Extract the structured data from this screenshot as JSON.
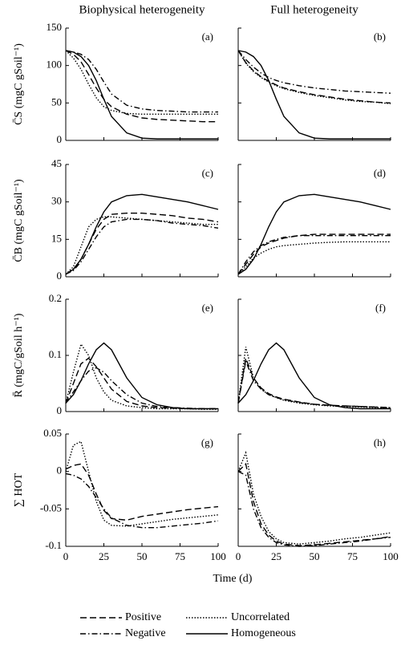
{
  "xlabel": "Time (d)",
  "chart_data": [
    {
      "type": "line",
      "title": "Biophysical heterogeneity",
      "panel": "(a)",
      "ylabel": "C̄S (mgC gSoil⁻¹)",
      "x": [
        0,
        5,
        10,
        15,
        20,
        25,
        30,
        40,
        50,
        60,
        70,
        80,
        90,
        100
      ],
      "xlim": [
        0,
        100
      ],
      "xticks": [
        0,
        25,
        50,
        75,
        100
      ],
      "ylim": [
        0,
        150
      ],
      "yticks": [
        0,
        50,
        100,
        150
      ],
      "series": [
        {
          "name": "Positive",
          "color": "#000000",
          "linestyle": "dashed",
          "values": [
            120,
            115,
            105,
            88,
            70,
            55,
            45,
            35,
            30,
            28,
            27,
            26,
            25,
            25
          ]
        },
        {
          "name": "Uncorrelated",
          "color": "#000000",
          "linestyle": "dotted",
          "values": [
            120,
            110,
            95,
            75,
            57,
            45,
            40,
            36,
            35,
            35,
            35,
            35,
            35,
            35
          ]
        },
        {
          "name": "Negative",
          "color": "#000000",
          "linestyle": "dashdot",
          "values": [
            120,
            118,
            115,
            108,
            95,
            78,
            62,
            47,
            42,
            40,
            39,
            38,
            38,
            38
          ]
        },
        {
          "name": "Homogeneous",
          "color": "#000000",
          "linestyle": "solid",
          "values": [
            120,
            118,
            112,
            100,
            80,
            55,
            32,
            10,
            3,
            2,
            2,
            2,
            2,
            2
          ]
        }
      ]
    },
    {
      "type": "line",
      "title": "Full heterogeneity",
      "panel": "(b)",
      "x": [
        0,
        5,
        10,
        15,
        20,
        25,
        30,
        40,
        50,
        60,
        70,
        80,
        90,
        100
      ],
      "xlim": [
        0,
        100
      ],
      "xticks": [
        0,
        25,
        50,
        75,
        100
      ],
      "ylim": [
        0,
        150
      ],
      "yticks": [
        0,
        50,
        100,
        150
      ],
      "series": [
        {
          "name": "Positive",
          "color": "#000000",
          "linestyle": "dashed",
          "values": [
            120,
            104,
            93,
            85,
            79,
            74,
            70,
            65,
            61,
            58,
            55,
            53,
            51,
            50
          ]
        },
        {
          "name": "Uncorrelated",
          "color": "#000000",
          "linestyle": "dotted",
          "values": [
            120,
            103,
            92,
            84,
            78,
            73,
            69,
            64,
            60,
            57,
            54,
            52,
            51,
            49
          ]
        },
        {
          "name": "Negative",
          "color": "#000000",
          "linestyle": "dashdot",
          "values": [
            120,
            108,
            98,
            90,
            84,
            80,
            77,
            73,
            70,
            68,
            66,
            65,
            64,
            63
          ]
        },
        {
          "name": "Homogeneous",
          "color": "#000000",
          "linestyle": "solid",
          "values": [
            120,
            118,
            112,
            100,
            80,
            55,
            32,
            10,
            3,
            2,
            2,
            2,
            2,
            2
          ]
        }
      ]
    },
    {
      "type": "line",
      "panel": "(c)",
      "ylabel": "C̄B (mgC gSoil⁻¹)",
      "x": [
        0,
        5,
        10,
        15,
        20,
        25,
        30,
        40,
        50,
        60,
        70,
        80,
        90,
        100
      ],
      "xlim": [
        0,
        100
      ],
      "xticks": [
        0,
        25,
        50,
        75,
        100
      ],
      "ylim": [
        0,
        45
      ],
      "yticks": [
        0,
        15,
        30,
        45
      ],
      "series": [
        {
          "name": "Positive",
          "color": "#000000",
          "linestyle": "dashed",
          "values": [
            1,
            3,
            7,
            13,
            19,
            23,
            25,
            25.5,
            25.5,
            25,
            24.5,
            23.5,
            23,
            22
          ]
        },
        {
          "name": "Uncorrelated",
          "color": "#000000",
          "linestyle": "dotted",
          "values": [
            1,
            4,
            12,
            20,
            23,
            24,
            24,
            23.5,
            23,
            22.5,
            22,
            21.5,
            21,
            21
          ]
        },
        {
          "name": "Negative",
          "color": "#000000",
          "linestyle": "dashdot",
          "values": [
            1,
            2.5,
            6,
            11,
            16,
            20,
            22,
            23,
            23,
            22.5,
            21.5,
            21,
            20.5,
            19.5
          ]
        },
        {
          "name": "Homogeneous",
          "color": "#000000",
          "linestyle": "solid",
          "values": [
            1,
            3,
            7,
            13,
            20,
            26,
            30,
            32.5,
            33,
            32,
            31,
            30,
            28.5,
            27
          ]
        }
      ]
    },
    {
      "type": "line",
      "panel": "(d)",
      "x": [
        0,
        5,
        10,
        15,
        20,
        25,
        30,
        40,
        50,
        60,
        70,
        80,
        90,
        100
      ],
      "xlim": [
        0,
        100
      ],
      "xticks": [
        0,
        25,
        50,
        75,
        100
      ],
      "ylim": [
        0,
        45
      ],
      "yticks": [
        0,
        15,
        30,
        45
      ],
      "series": [
        {
          "name": "Positive",
          "color": "#000000",
          "linestyle": "dashed",
          "values": [
            1,
            5,
            9,
            12,
            13.5,
            14.5,
            15.5,
            16.5,
            17,
            17,
            17,
            17,
            17,
            17
          ]
        },
        {
          "name": "Uncorrelated",
          "color": "#000000",
          "linestyle": "dotted",
          "values": [
            1,
            4,
            7.5,
            9.5,
            11,
            12,
            12.5,
            13,
            13.5,
            13.8,
            14,
            14,
            14,
            14
          ]
        },
        {
          "name": "Negative",
          "color": "#000000",
          "linestyle": "dashdot",
          "values": [
            1,
            6,
            10,
            12.5,
            14,
            15,
            15.8,
            16.5,
            16.5,
            16.5,
            16.5,
            16.5,
            16.5,
            16.5
          ]
        },
        {
          "name": "Homogeneous",
          "color": "#000000",
          "linestyle": "solid",
          "values": [
            1,
            3,
            7,
            13,
            20,
            26,
            30,
            32.5,
            33,
            32,
            31,
            30,
            28.5,
            27
          ]
        }
      ]
    },
    {
      "type": "line",
      "panel": "(e)",
      "ylabel": "R̄ (mgC/gSoil h⁻¹)",
      "x": [
        0,
        5,
        10,
        15,
        20,
        25,
        30,
        40,
        50,
        60,
        70,
        80,
        90,
        100
      ],
      "xlim": [
        0,
        100
      ],
      "xticks": [
        0,
        25,
        50,
        75,
        100
      ],
      "ylim": [
        0,
        0.2
      ],
      "yticks": [
        0,
        0.1,
        0.2
      ],
      "series": [
        {
          "name": "Positive",
          "color": "#000000",
          "linestyle": "dashed",
          "values": [
            0.015,
            0.05,
            0.085,
            0.095,
            0.08,
            0.06,
            0.04,
            0.018,
            0.01,
            0.007,
            0.006,
            0.005,
            0.005,
            0.005
          ]
        },
        {
          "name": "Uncorrelated",
          "color": "#000000",
          "linestyle": "dotted",
          "values": [
            0.015,
            0.07,
            0.12,
            0.1,
            0.06,
            0.035,
            0.02,
            0.01,
            0.007,
            0.005,
            0.005,
            0.005,
            0.004,
            0.004
          ]
        },
        {
          "name": "Negative",
          "color": "#000000",
          "linestyle": "dashdot",
          "values": [
            0.015,
            0.035,
            0.055,
            0.072,
            0.078,
            0.07,
            0.055,
            0.03,
            0.015,
            0.009,
            0.007,
            0.006,
            0.005,
            0.005
          ]
        },
        {
          "name": "Homogeneous",
          "color": "#000000",
          "linestyle": "solid",
          "values": [
            0.015,
            0.03,
            0.055,
            0.085,
            0.11,
            0.122,
            0.11,
            0.06,
            0.025,
            0.012,
            0.007,
            0.005,
            0.005,
            0.005
          ]
        }
      ]
    },
    {
      "type": "line",
      "panel": "(f)",
      "x": [
        0,
        5,
        10,
        15,
        20,
        25,
        30,
        40,
        50,
        60,
        70,
        80,
        90,
        100
      ],
      "xlim": [
        0,
        100
      ],
      "xticks": [
        0,
        25,
        50,
        75,
        100
      ],
      "ylim": [
        0,
        0.2
      ],
      "yticks": [
        0,
        0.1,
        0.2
      ],
      "series": [
        {
          "name": "Positive",
          "color": "#000000",
          "linestyle": "dashed",
          "values": [
            0.015,
            0.095,
            0.06,
            0.042,
            0.032,
            0.026,
            0.022,
            0.017,
            0.013,
            0.011,
            0.01,
            0.009,
            0.008,
            0.007
          ]
        },
        {
          "name": "Uncorrelated",
          "color": "#000000",
          "linestyle": "dotted",
          "values": [
            0.015,
            0.115,
            0.06,
            0.04,
            0.03,
            0.025,
            0.02,
            0.015,
            0.012,
            0.01,
            0.009,
            0.008,
            0.007,
            0.006
          ]
        },
        {
          "name": "Negative",
          "color": "#000000",
          "linestyle": "dashdot",
          "values": [
            0.015,
            0.09,
            0.055,
            0.04,
            0.03,
            0.025,
            0.021,
            0.016,
            0.013,
            0.011,
            0.01,
            0.009,
            0.008,
            0.007
          ]
        },
        {
          "name": "Homogeneous",
          "color": "#000000",
          "linestyle": "solid",
          "values": [
            0.015,
            0.03,
            0.055,
            0.085,
            0.11,
            0.122,
            0.11,
            0.06,
            0.025,
            0.012,
            0.007,
            0.005,
            0.005,
            0.005
          ]
        }
      ]
    },
    {
      "type": "line",
      "panel": "(g)",
      "ylabel": "∑ HOT",
      "x": [
        0,
        5,
        10,
        15,
        20,
        25,
        30,
        40,
        50,
        60,
        70,
        80,
        90,
        100
      ],
      "xlim": [
        0,
        100
      ],
      "xticks": [
        0,
        25,
        50,
        75,
        100
      ],
      "ylim": [
        -0.1,
        0.05
      ],
      "yticks": [
        -0.1,
        -0.05,
        0,
        0.05
      ],
      "series": [
        {
          "name": "Positive",
          "color": "#000000",
          "linestyle": "dashed",
          "values": [
            0.003,
            0.008,
            0.01,
            -0.005,
            -0.03,
            -0.052,
            -0.063,
            -0.065,
            -0.06,
            -0.057,
            -0.054,
            -0.051,
            -0.049,
            -0.047
          ]
        },
        {
          "name": "Uncorrelated",
          "color": "#000000",
          "linestyle": "dotted",
          "values": [
            0,
            0.035,
            0.04,
            0,
            -0.04,
            -0.065,
            -0.072,
            -0.073,
            -0.07,
            -0.067,
            -0.064,
            -0.062,
            -0.06,
            -0.058
          ]
        },
        {
          "name": "Negative",
          "color": "#000000",
          "linestyle": "dashdot",
          "values": [
            -0.003,
            -0.005,
            -0.01,
            -0.02,
            -0.035,
            -0.05,
            -0.062,
            -0.072,
            -0.075,
            -0.075,
            -0.073,
            -0.071,
            -0.069,
            -0.066
          ]
        }
      ]
    },
    {
      "type": "line",
      "panel": "(h)",
      "x": [
        0,
        5,
        10,
        15,
        20,
        25,
        30,
        40,
        50,
        60,
        70,
        80,
        90,
        100
      ],
      "xlim": [
        0,
        100
      ],
      "xticks": [
        0,
        25,
        50,
        75,
        100
      ],
      "ylim": [
        -0.1,
        0.05
      ],
      "yticks": [
        -0.1,
        -0.05,
        0,
        0.05
      ],
      "series": [
        {
          "name": "Positive",
          "color": "#000000",
          "linestyle": "dashed",
          "values": [
            0,
            0.01,
            -0.04,
            -0.07,
            -0.085,
            -0.093,
            -0.097,
            -0.099,
            -0.098,
            -0.096,
            -0.094,
            -0.092,
            -0.09,
            -0.087
          ]
        },
        {
          "name": "Uncorrelated",
          "color": "#000000",
          "linestyle": "dotted",
          "values": [
            0,
            0.025,
            -0.03,
            -0.06,
            -0.08,
            -0.09,
            -0.095,
            -0.097,
            -0.095,
            -0.093,
            -0.09,
            -0.088,
            -0.085,
            -0.082
          ]
        },
        {
          "name": "Negative",
          "color": "#000000",
          "linestyle": "dashdot",
          "values": [
            0,
            -0.005,
            -0.05,
            -0.075,
            -0.088,
            -0.095,
            -0.098,
            -0.1,
            -0.099,
            -0.097,
            -0.095,
            -0.093,
            -0.09,
            -0.088
          ]
        }
      ]
    }
  ]
}
